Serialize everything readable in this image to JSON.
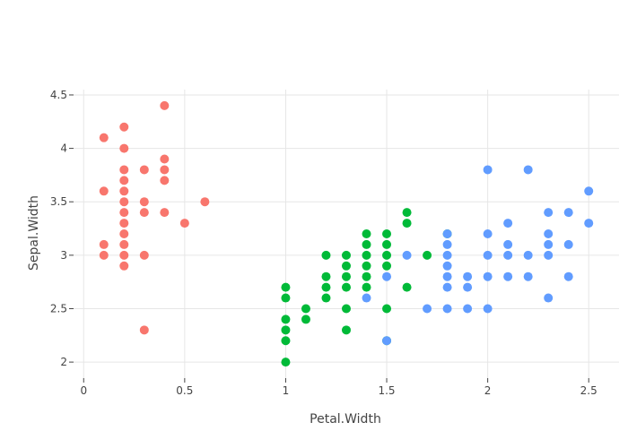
{
  "chart_data": {
    "type": "scatter",
    "title": "",
    "xlabel": "Petal.Width",
    "ylabel": "Sepal.Width",
    "xlim": [
      -0.05,
      2.65
    ],
    "ylim": [
      1.85,
      4.55
    ],
    "xticks": [
      0,
      0.5,
      1,
      1.5,
      2,
      2.5
    ],
    "xtick_labels": [
      "0",
      "0.5",
      "1",
      "1.5",
      "2",
      "2.5"
    ],
    "yticks": [
      2,
      2.5,
      3,
      3.5,
      4,
      4.5
    ],
    "ytick_labels": [
      "2",
      "2.5",
      "3",
      "3.5",
      "4",
      "4.5"
    ],
    "grid": true,
    "legend": "none",
    "series": [
      {
        "color": "#F8766D",
        "points": [
          [
            0.1,
            4.1
          ],
          [
            0.1,
            3.6
          ],
          [
            0.1,
            3.1
          ],
          [
            0.1,
            3.0
          ],
          [
            0.2,
            4.2
          ],
          [
            0.2,
            4.0
          ],
          [
            0.2,
            3.8
          ],
          [
            0.2,
            3.7
          ],
          [
            0.2,
            3.6
          ],
          [
            0.2,
            3.5
          ],
          [
            0.2,
            3.4
          ],
          [
            0.2,
            3.3
          ],
          [
            0.2,
            3.2
          ],
          [
            0.2,
            3.1
          ],
          [
            0.2,
            3.0
          ],
          [
            0.2,
            2.9
          ],
          [
            0.3,
            3.8
          ],
          [
            0.3,
            3.5
          ],
          [
            0.3,
            3.4
          ],
          [
            0.3,
            3.0
          ],
          [
            0.3,
            2.3
          ],
          [
            0.4,
            4.4
          ],
          [
            0.4,
            3.9
          ],
          [
            0.4,
            3.8
          ],
          [
            0.4,
            3.7
          ],
          [
            0.4,
            3.4
          ],
          [
            0.5,
            3.3
          ],
          [
            0.6,
            3.5
          ]
        ]
      },
      {
        "color": "#00BA38",
        "points": [
          [
            1.0,
            2.7
          ],
          [
            1.0,
            2.6
          ],
          [
            1.0,
            2.4
          ],
          [
            1.0,
            2.3
          ],
          [
            1.0,
            2.2
          ],
          [
            1.0,
            2.0
          ],
          [
            1.1,
            2.5
          ],
          [
            1.1,
            2.4
          ],
          [
            1.2,
            3.0
          ],
          [
            1.2,
            2.8
          ],
          [
            1.2,
            2.7
          ],
          [
            1.2,
            2.6
          ],
          [
            1.3,
            3.0
          ],
          [
            1.3,
            2.9
          ],
          [
            1.3,
            2.8
          ],
          [
            1.3,
            2.7
          ],
          [
            1.3,
            2.5
          ],
          [
            1.3,
            2.3
          ],
          [
            1.4,
            3.2
          ],
          [
            1.4,
            3.1
          ],
          [
            1.4,
            3.0
          ],
          [
            1.4,
            2.9
          ],
          [
            1.4,
            2.8
          ],
          [
            1.4,
            2.7
          ],
          [
            1.5,
            3.2
          ],
          [
            1.5,
            3.1
          ],
          [
            1.5,
            3.0
          ],
          [
            1.5,
            2.9
          ],
          [
            1.5,
            2.5
          ],
          [
            1.5,
            2.2
          ],
          [
            1.6,
            3.4
          ],
          [
            1.6,
            3.3
          ],
          [
            1.6,
            2.7
          ],
          [
            1.7,
            3.0
          ],
          [
            1.8,
            3.2
          ]
        ]
      },
      {
        "color": "#619CFF",
        "points": [
          [
            1.4,
            2.6
          ],
          [
            1.5,
            2.8
          ],
          [
            1.5,
            2.2
          ],
          [
            1.6,
            3.0
          ],
          [
            1.7,
            2.5
          ],
          [
            1.8,
            3.2
          ],
          [
            1.8,
            3.1
          ],
          [
            1.8,
            3.0
          ],
          [
            1.8,
            2.9
          ],
          [
            1.8,
            2.8
          ],
          [
            1.8,
            2.7
          ],
          [
            1.8,
            2.5
          ],
          [
            1.9,
            2.8
          ],
          [
            1.9,
            2.7
          ],
          [
            1.9,
            2.5
          ],
          [
            2.0,
            3.8
          ],
          [
            2.0,
            3.2
          ],
          [
            2.0,
            3.0
          ],
          [
            2.0,
            2.8
          ],
          [
            2.0,
            2.5
          ],
          [
            2.1,
            3.3
          ],
          [
            2.1,
            3.1
          ],
          [
            2.1,
            3.0
          ],
          [
            2.1,
            2.8
          ],
          [
            2.2,
            3.8
          ],
          [
            2.2,
            3.0
          ],
          [
            2.2,
            2.8
          ],
          [
            2.3,
            3.4
          ],
          [
            2.3,
            3.2
          ],
          [
            2.3,
            3.1
          ],
          [
            2.3,
            3.0
          ],
          [
            2.3,
            2.6
          ],
          [
            2.4,
            3.4
          ],
          [
            2.4,
            3.1
          ],
          [
            2.4,
            2.8
          ],
          [
            2.5,
            3.6
          ],
          [
            2.5,
            3.3
          ]
        ]
      }
    ]
  }
}
